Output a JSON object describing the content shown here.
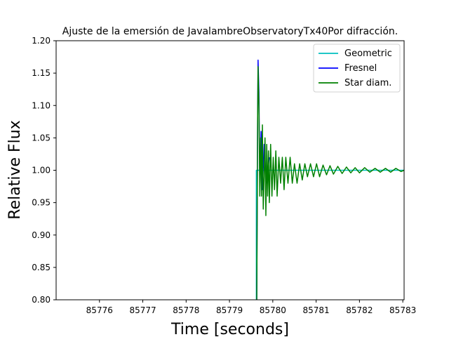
{
  "chart_data": {
    "type": "line",
    "title": "Ajuste de la emersión de JavalambreObservatoryTx40Por difracción.",
    "xlabel": "Time [seconds]",
    "ylabel": "Relative Flux",
    "xlim": [
      85775.0,
      85783.03
    ],
    "ylim": [
      0.8,
      1.2
    ],
    "xticks": [
      85776,
      85777,
      85778,
      85779,
      85780,
      85781,
      85782,
      85783
    ],
    "xtick_labels": [
      "85776",
      "85777",
      "85778",
      "85779",
      "85780",
      "85781",
      "85782",
      "85783"
    ],
    "yticks": [
      0.8,
      0.85,
      0.9,
      0.95,
      1.0,
      1.05,
      1.1,
      1.15,
      1.2
    ],
    "ytick_labels": [
      "0.80",
      "0.85",
      "0.90",
      "0.95",
      "1.00",
      "1.05",
      "1.10",
      "1.15",
      "1.20"
    ],
    "grid": false,
    "legend_position": "top-right",
    "series": [
      {
        "name": "Geometric",
        "color": "#00bfbf",
        "x": [
          85779.62,
          85779.62,
          85779.63,
          85779.63,
          85783.03
        ],
        "y": [
          0.8,
          1.0,
          1.0,
          1.0,
          1.0
        ]
      },
      {
        "name": "Fresnel",
        "color": "#0000ff",
        "x": [
          85779.63,
          85779.65,
          85779.66,
          85779.68,
          85779.7,
          85779.73,
          85779.76,
          85779.8,
          85779.85,
          85779.92
        ],
        "y": [
          0.8,
          1.08,
          1.17,
          1.12,
          0.98,
          1.06,
          0.97,
          1.04,
          0.98,
          1.02
        ]
      },
      {
        "name": "Star diam.",
        "color": "#008000",
        "x": [
          85779.63,
          85779.65,
          85779.66,
          85779.68,
          85779.7,
          85779.72,
          85779.74,
          85779.76,
          85779.78,
          85779.8,
          85779.82,
          85779.84,
          85779.86,
          85779.88,
          85779.9,
          85779.92,
          85779.95,
          85779.98,
          85780.01,
          85780.04,
          85780.07,
          85780.1,
          85780.14,
          85780.18,
          85780.22,
          85780.26,
          85780.3,
          85780.35,
          85780.4,
          85780.45,
          85780.5,
          85780.56,
          85780.62,
          85780.68,
          85780.74,
          85780.8,
          85780.87,
          85780.94,
          85781.01,
          85781.08,
          85781.16,
          85781.24,
          85781.32,
          85781.4,
          85781.5,
          85781.6,
          85781.7,
          85781.8,
          85781.9,
          85782.0,
          85782.12,
          85782.24,
          85782.36,
          85782.48,
          85782.6,
          85782.72,
          85782.84,
          85782.96,
          85783.03
        ],
        "y": [
          0.8,
          1.08,
          1.16,
          1.1,
          0.96,
          1.05,
          0.96,
          1.07,
          0.94,
          0.99,
          1.05,
          0.93,
          1.04,
          0.96,
          1.03,
          0.95,
          1.04,
          0.96,
          1.02,
          0.97,
          1.03,
          0.96,
          1.02,
          0.98,
          1.02,
          0.97,
          1.02,
          0.98,
          1.02,
          0.98,
          1.01,
          0.98,
          1.01,
          0.985,
          1.01,
          0.99,
          1.01,
          0.99,
          1.01,
          0.99,
          1.008,
          0.993,
          1.007,
          0.994,
          1.006,
          0.995,
          1.005,
          0.996,
          1.004,
          0.996,
          1.004,
          0.997,
          1.003,
          0.997,
          1.003,
          0.997,
          1.003,
          0.998,
          1.0
        ]
      }
    ]
  }
}
